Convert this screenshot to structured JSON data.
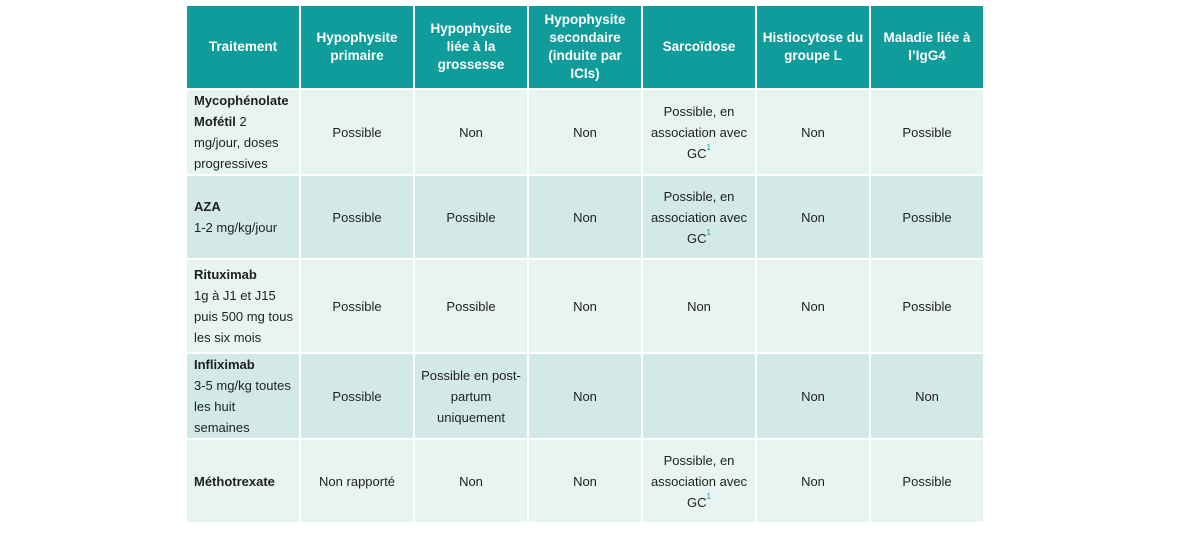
{
  "headers": [
    "Traitement",
    "Hypophysite primaire",
    "Hypophysite liée à la grossesse",
    "Hypophysite secondaire (induite par ICIs)",
    "Sarcoïdose",
    "Histiocytose du groupe L",
    "Maladie liée à l’IgG4"
  ],
  "rows": [
    {
      "drug": "Mycophénolate Mofétil",
      "dose": " 2 mg/jour, doses progressives",
      "cells": [
        "Possible",
        "Non",
        "Non",
        "Possible, en association avec GC",
        "Non",
        "Possible"
      ],
      "footnote": "1"
    },
    {
      "drug": "AZA",
      "dose": "1-2 mg/kg/jour",
      "cells": [
        "Possible",
        "Possible",
        "Non",
        "Possible, en association avec GC",
        "Non",
        "Possible"
      ],
      "footnote": "1"
    },
    {
      "drug": "Rituximab",
      "dose": "1g à J1 et J15 puis 500 mg tous les six mois",
      "cells": [
        "Possible",
        "Possible",
        "Non",
        "Non",
        "Non",
        "Possible"
      ],
      "footnote": ""
    },
    {
      "drug": "Infliximab",
      "dose": "3-5 mg/kg toutes les huit semaines",
      "cells": [
        "Possible",
        "Possible en post-partum uniquement",
        "Non",
        "",
        "Non",
        "Non"
      ],
      "footnote": ""
    },
    {
      "drug": "Méthotrexate",
      "dose": "",
      "cells": [
        "Non rapporté",
        "Non",
        "Non",
        "Possible, en association avec GC",
        "Non",
        "Possible"
      ],
      "footnote": "1"
    }
  ]
}
